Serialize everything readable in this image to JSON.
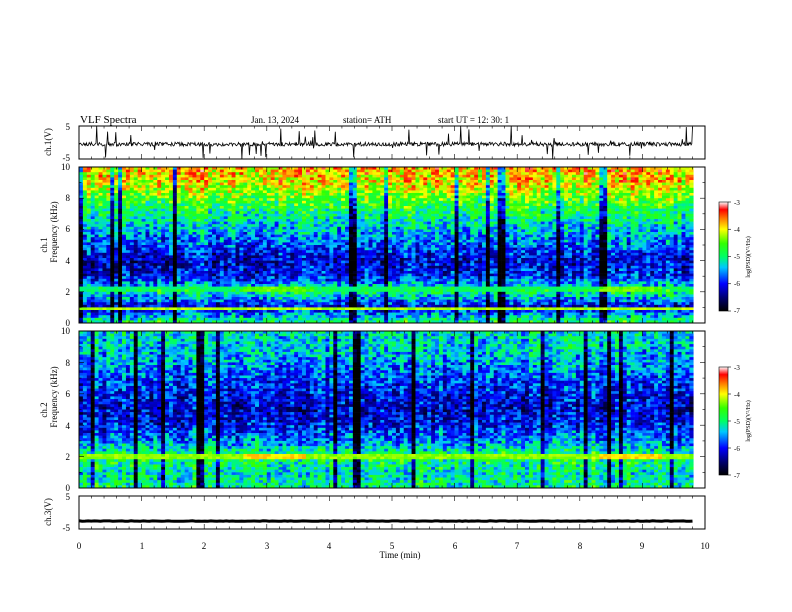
{
  "header": {
    "title": "VLF  Spectra",
    "date": "Jan. 13, 2024",
    "station": "station= ATH",
    "start": "start  UT  =    12: 30: 1"
  },
  "chart_data": [
    {
      "type": "line",
      "panel": "ch1",
      "ylabel": "ch.1(V)",
      "xlim": [
        0,
        10
      ],
      "ylim": [
        -5,
        5
      ],
      "yticks": [
        "5",
        "-5"
      ],
      "baseline": -0.5,
      "noise_amplitude": 0.6,
      "spikes": "frequent sharp spikes reaching about +5 and -5"
    },
    {
      "type": "heatmap",
      "panel": "ch1 spectrogram",
      "ylabel_top": "ch.1",
      "ylabel": "Frequency  (kHz)",
      "xlim": [
        0,
        10
      ],
      "ylim": [
        0,
        10
      ],
      "yticks": [
        "0",
        "2",
        "4",
        "6",
        "8",
        "10"
      ],
      "colorbar": {
        "label": "log(PSD)(V²/Hz)",
        "range": [
          -7,
          -3
        ],
        "ticks": [
          "-3",
          "-4",
          "-5",
          "-6",
          "-7"
        ]
      },
      "band_level_by_khz": [
        [
          0,
          -4.8
        ],
        [
          1,
          -6.2
        ],
        [
          2,
          -5.0
        ],
        [
          3,
          -6.0
        ],
        [
          4,
          -6.2
        ],
        [
          5,
          -5.8
        ],
        [
          6,
          -5.4
        ],
        [
          7,
          -5.0
        ],
        [
          8,
          -4.5
        ],
        [
          9,
          -4.0
        ],
        [
          10,
          -3.8
        ]
      ],
      "features": [
        {
          "name": "line at 2.2 kHz",
          "khz": 2.2,
          "level": -5.0
        },
        {
          "name": "line at 0.9 kHz",
          "khz": 0.9,
          "level": -4.2
        },
        {
          "name": "elevated segment",
          "khz": 2.2,
          "from_min": 2.6,
          "to_min": 3.6,
          "level": -4.4
        },
        {
          "name": "elevated segment",
          "khz": 2.2,
          "from_min": 8.3,
          "to_min": 9.3,
          "level": -4.4
        }
      ]
    },
    {
      "type": "heatmap",
      "panel": "ch2 spectrogram",
      "ylabel_top": "ch.2",
      "ylabel": "Frequency  (kHz)",
      "xlim": [
        0,
        10
      ],
      "ylim": [
        0,
        10
      ],
      "yticks": [
        "0",
        "2",
        "4",
        "6",
        "8",
        "10"
      ],
      "colorbar": {
        "label": "log(PSD)(V²/Hz)",
        "range": [
          -7,
          -3
        ],
        "ticks": [
          "-3",
          "-4",
          "-5",
          "-6",
          "-7"
        ]
      },
      "band_level_by_khz": [
        [
          0,
          -5.0
        ],
        [
          1,
          -5.2
        ],
        [
          2,
          -4.8
        ],
        [
          3,
          -5.6
        ],
        [
          4,
          -6.0
        ],
        [
          5,
          -6.2
        ],
        [
          6,
          -6.0
        ],
        [
          7,
          -5.8
        ],
        [
          8,
          -5.5
        ],
        [
          9,
          -5.3
        ],
        [
          10,
          -5.2
        ]
      ],
      "features": [
        {
          "name": "line at 2.0 kHz",
          "khz": 2.0,
          "level": -4.3
        },
        {
          "name": "elevated segment",
          "khz": 2.0,
          "from_min": 2.6,
          "to_min": 3.6,
          "level": -3.9
        },
        {
          "name": "elevated segment",
          "khz": 2.0,
          "from_min": 8.3,
          "to_min": 9.3,
          "level": -3.9
        }
      ]
    },
    {
      "type": "line",
      "panel": "ch3",
      "ylabel": "ch.3(V)",
      "xlabel": "Time  (min)",
      "xlim": [
        0,
        10
      ],
      "ylim": [
        -5,
        5
      ],
      "yticks": [
        "5",
        "-5"
      ],
      "xticks": [
        "0",
        "1",
        "2",
        "3",
        "4",
        "5",
        "6",
        "7",
        "8",
        "9",
        "10"
      ],
      "value": -2.6,
      "data_end_min": 9.8
    }
  ]
}
